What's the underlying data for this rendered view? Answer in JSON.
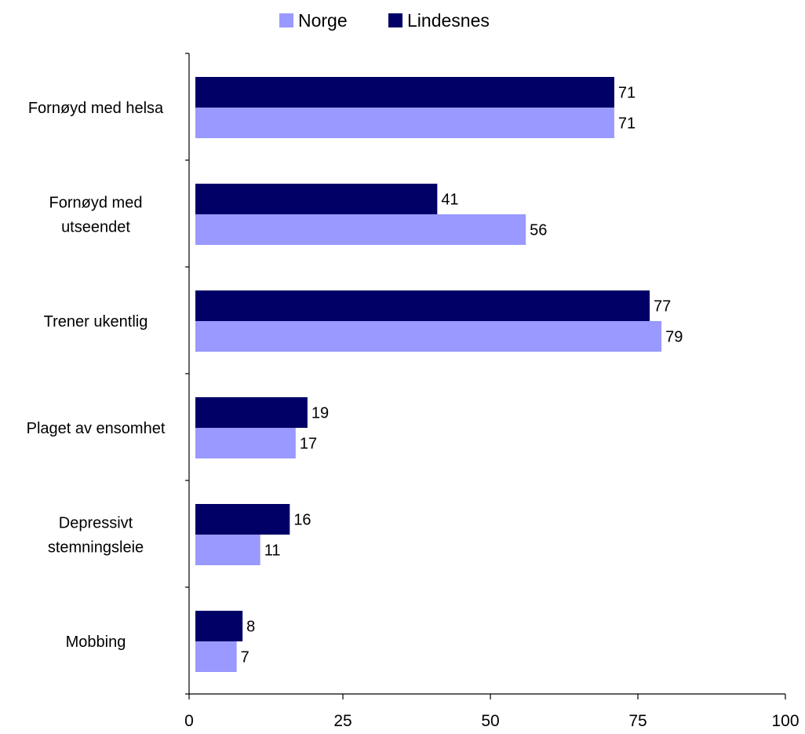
{
  "chart_data": {
    "type": "bar",
    "orientation": "horizontal",
    "title": "",
    "xlabel": "",
    "ylabel": "",
    "xlim": [
      0,
      100
    ],
    "x_ticks": [
      0,
      25,
      50,
      75,
      100
    ],
    "grid": false,
    "legend_position": "top-center",
    "categories": [
      "Fornøyd med helsa",
      "Fornøyd med utseendet",
      "Trener ukentlig",
      "Plaget av ensomhet",
      "Depressivt stemningsleie",
      "Mobbing"
    ],
    "category_label_lines": [
      [
        "Fornøyd med helsa"
      ],
      [
        "Fornøyd med",
        "utseendet"
      ],
      [
        "Trener ukentlig"
      ],
      [
        "Plaget av ensomhet"
      ],
      [
        "Depressivt",
        "stemningsleie"
      ],
      [
        "Mobbing"
      ]
    ],
    "series": [
      {
        "name": "Lindesnes",
        "color": "#000066",
        "values": [
          71,
          41,
          77,
          19,
          16,
          8
        ]
      },
      {
        "name": "Norge",
        "color": "#9999FF",
        "values": [
          71,
          56,
          79,
          17,
          11,
          7
        ]
      }
    ],
    "legend_order": [
      "Norge",
      "Lindesnes"
    ]
  }
}
